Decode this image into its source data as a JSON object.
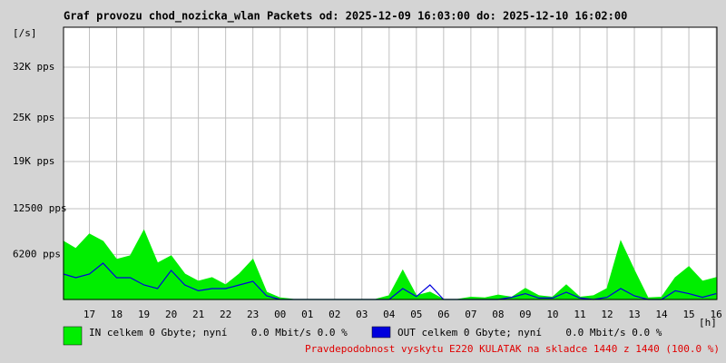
{
  "chart_data": {
    "type": "line",
    "title": "Graf provozu chod_nozicka_wlan Packets od: 2025-12-09 16:03:00 do: 2025-12-10 16:02:00",
    "y_label": "[/s]",
    "x_label": "[h]",
    "footer": "Pravdepodobnost vyskytu E220 KULATAK na skladce 1440 z 1440 (100.0 %)",
    "grid": true,
    "xlim": [
      16.05,
      40.03
    ],
    "ylim": [
      0,
      37500
    ],
    "xticks": [
      17,
      18,
      19,
      20,
      21,
      22,
      23,
      {
        "value": 24,
        "label": "00"
      },
      {
        "value": 25,
        "label": "01"
      },
      {
        "value": 26,
        "label": "02"
      },
      {
        "value": 27,
        "label": "03"
      },
      {
        "value": 28,
        "label": "04"
      },
      {
        "value": 29,
        "label": "05"
      },
      {
        "value": 30,
        "label": "06"
      },
      {
        "value": 31,
        "label": "07"
      },
      {
        "value": 32,
        "label": "08"
      },
      {
        "value": 33,
        "label": "09"
      },
      {
        "value": 34,
        "label": "10"
      },
      {
        "value": 35,
        "label": "11"
      },
      {
        "value": 36,
        "label": "12"
      },
      {
        "value": 37,
        "label": "13"
      },
      {
        "value": 38,
        "label": "14"
      },
      {
        "value": 39,
        "label": "15"
      },
      {
        "value": 40,
        "label": "16"
      }
    ],
    "yticks": [
      {
        "value": 6200,
        "label": "6200 pps"
      },
      {
        "value": 12500,
        "label": "12500 pps"
      },
      {
        "value": 19000,
        "label": "19K pps"
      },
      {
        "value": 25000,
        "label": "25K pps"
      },
      {
        "value": 32000,
        "label": "32K pps"
      }
    ],
    "x": [
      16.05,
      16.5,
      17,
      17.5,
      18,
      18.5,
      19,
      19.5,
      20,
      20.5,
      21,
      21.5,
      22,
      22.5,
      23,
      23.5,
      24,
      24.5,
      25,
      25.5,
      26,
      26.5,
      27,
      27.5,
      28,
      28.5,
      29,
      29.5,
      30,
      30.5,
      31,
      31.5,
      32,
      32.5,
      33,
      33.5,
      34,
      34.5,
      35,
      35.5,
      36,
      36.5,
      37,
      37.5,
      38,
      38.5,
      39,
      39.5,
      40
    ],
    "series": [
      {
        "name": "IN celkem 0 Gbyte; nyní    0.0 Mbit/s 0.0 %",
        "color": "#00ee00",
        "fill": true,
        "values": [
          8000,
          7000,
          9000,
          8000,
          5500,
          6000,
          9500,
          5000,
          6000,
          3500,
          2500,
          3000,
          2000,
          3500,
          5500,
          1000,
          200,
          0,
          0,
          0,
          0,
          0,
          0,
          0,
          500,
          4000,
          500,
          1000,
          0,
          0,
          300,
          200,
          600,
          300,
          1500,
          500,
          300,
          2000,
          300,
          500,
          1500,
          8000,
          4000,
          200,
          300,
          3000,
          4500,
          2500,
          3000
        ]
      },
      {
        "name": "OUT celkem 0 Gbyte; nyní    0.0 Mbit/s 0.0 %",
        "color": "#0000dd",
        "fill": false,
        "values": [
          3500,
          3000,
          3500,
          5000,
          3000,
          3000,
          2000,
          1500,
          4000,
          2000,
          1200,
          1500,
          1500,
          2000,
          2500,
          500,
          0,
          0,
          0,
          0,
          0,
          0,
          0,
          0,
          0,
          1500,
          400,
          2000,
          0,
          0,
          0,
          0,
          0,
          300,
          800,
          200,
          200,
          1000,
          200,
          0,
          300,
          1500,
          500,
          0,
          0,
          1200,
          800,
          300,
          800
        ]
      }
    ]
  }
}
